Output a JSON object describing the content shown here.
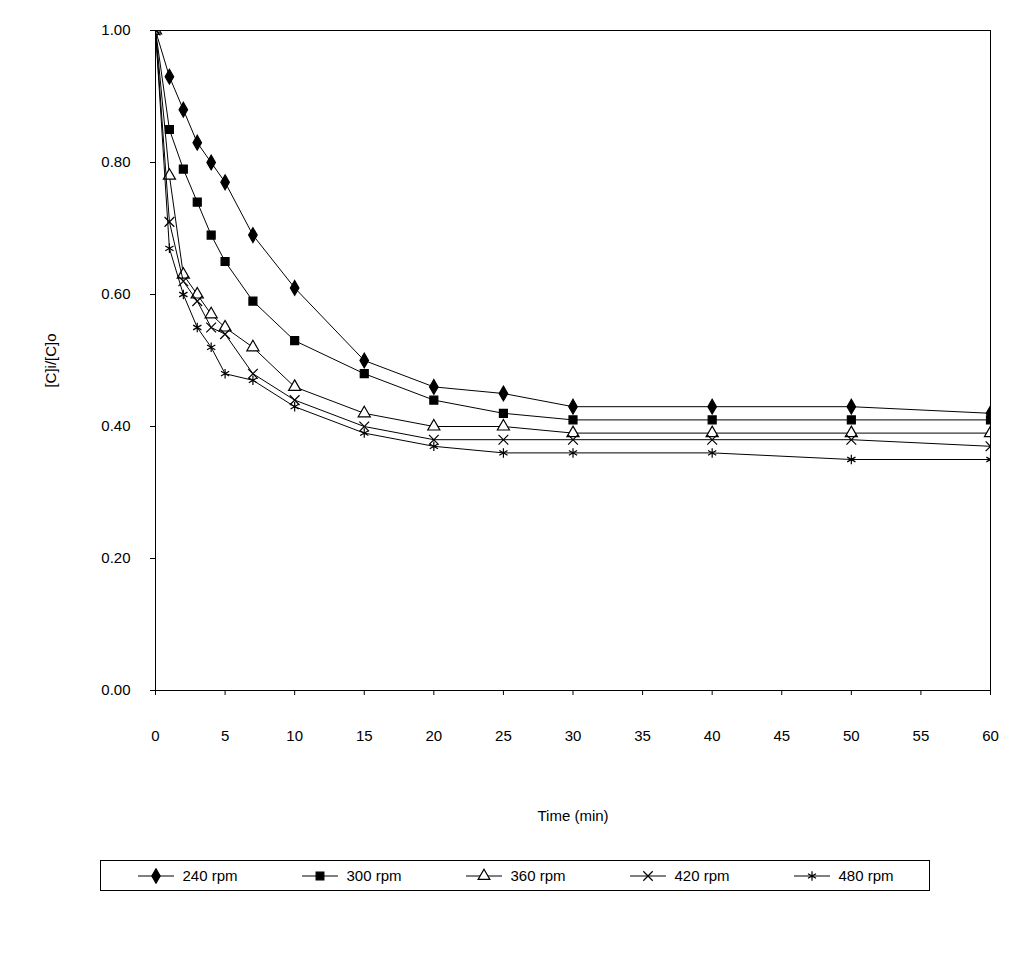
{
  "chart_data": {
    "type": "line",
    "x_label": "Time (min)",
    "y_label": "[C]i/[C]o",
    "xlim": [
      0,
      60
    ],
    "xticks": [
      0,
      5,
      10,
      15,
      20,
      25,
      30,
      35,
      40,
      45,
      50,
      55,
      60
    ],
    "ylim": [
      0,
      1
    ],
    "yticks": [
      {
        "value": 0,
        "label": "0.00"
      },
      {
        "value": 0.2,
        "label": "0.20"
      },
      {
        "value": 0.4,
        "label": "0.40"
      },
      {
        "value": 0.6,
        "label": "0.60"
      },
      {
        "value": 0.8,
        "label": "0.80"
      },
      {
        "value": 1,
        "label": "1.00"
      }
    ],
    "grid": false,
    "legend": "bottom",
    "x": [
      0,
      1,
      2,
      3,
      4,
      5,
      7,
      10,
      15,
      20,
      25,
      30,
      40,
      50,
      60
    ],
    "series": [
      {
        "name": "240 rpm",
        "color": "#000000",
        "marker": "diamond",
        "values": [
          1.0,
          0.93,
          0.88,
          0.83,
          0.8,
          0.77,
          0.69,
          0.61,
          0.5,
          0.46,
          0.45,
          0.43,
          0.43,
          0.43,
          0.42
        ]
      },
      {
        "name": "300 rpm",
        "color": "#000000",
        "marker": "square",
        "values": [
          1.0,
          0.85,
          0.79,
          0.74,
          0.69,
          0.65,
          0.59,
          0.53,
          0.48,
          0.44,
          0.42,
          0.41,
          0.41,
          0.41,
          0.41
        ]
      },
      {
        "name": "360 rpm",
        "color": "#000000",
        "marker": "triangle",
        "values": [
          1.0,
          0.78,
          0.63,
          0.6,
          0.57,
          0.55,
          0.52,
          0.46,
          0.42,
          0.4,
          0.4,
          0.39,
          0.39,
          0.39,
          0.39
        ]
      },
      {
        "name": "420 rpm",
        "color": "#000000",
        "marker": "times",
        "values": [
          1.0,
          0.71,
          0.62,
          0.59,
          0.55,
          0.54,
          0.48,
          0.44,
          0.4,
          0.38,
          0.38,
          0.38,
          0.38,
          0.38,
          0.37
        ]
      },
      {
        "name": "480 rpm",
        "color": "#000000",
        "marker": "asterisk",
        "values": [
          1.0,
          0.67,
          0.6,
          0.55,
          0.52,
          0.48,
          0.47,
          0.43,
          0.39,
          0.37,
          0.36,
          0.36,
          0.36,
          0.35,
          0.35
        ]
      }
    ]
  }
}
